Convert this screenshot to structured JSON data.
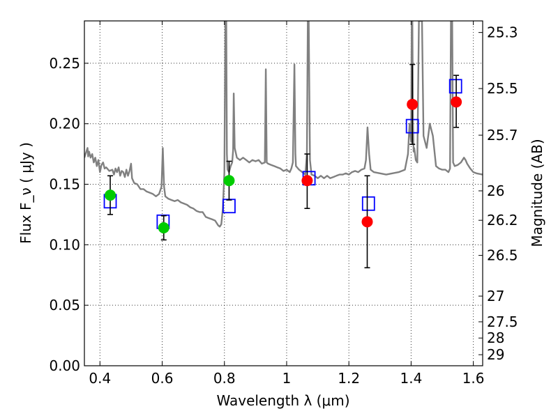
{
  "chart_data": {
    "type": "scatter",
    "title": "",
    "xlabel": "Wavelength  λ (μm)",
    "ylabel": "Flux  F_ν  ( μJy )",
    "ylabel_right": "Magnitude (AB)",
    "xlim": [
      0.35,
      1.63
    ],
    "ylim": [
      0,
      0.285
    ],
    "grid": true,
    "x_ticks": [
      {
        "value": 0.4,
        "label": "0.4"
      },
      {
        "value": 0.6,
        "label": "0.6"
      },
      {
        "value": 0.8,
        "label": "0.8"
      },
      {
        "value": 1.0,
        "label": "1"
      },
      {
        "value": 1.2,
        "label": "1.2"
      },
      {
        "value": 1.4,
        "label": "1.4"
      },
      {
        "value": 1.6,
        "label": "1.6"
      }
    ],
    "y_ticks": [
      {
        "value": 0.0,
        "label": "0.00"
      },
      {
        "value": 0.05,
        "label": "0.05"
      },
      {
        "value": 0.1,
        "label": "0.10"
      },
      {
        "value": 0.15,
        "label": "0.15"
      },
      {
        "value": 0.2,
        "label": "0.20"
      },
      {
        "value": 0.25,
        "label": "0.25"
      }
    ],
    "mag_ticks": [
      {
        "value": 25.3,
        "label": "25.3"
      },
      {
        "value": 25.5,
        "label": "25.5"
      },
      {
        "value": 25.7,
        "label": "25.7"
      },
      {
        "value": 26.0,
        "label": "26"
      },
      {
        "value": 26.2,
        "label": "26.2"
      },
      {
        "value": 26.5,
        "label": "26.5"
      },
      {
        "value": 27.0,
        "label": "27"
      },
      {
        "value": 27.5,
        "label": "27.5"
      },
      {
        "value": 28.0,
        "label": "28"
      },
      {
        "value": 29.0,
        "label": "29"
      }
    ],
    "colors": {
      "spectrum": "#808080",
      "model": "#0000ff",
      "green_points": "#00cc00",
      "red_points": "#ff0000",
      "errorbar": "#000000"
    },
    "series": [
      {
        "style": "line",
        "points": [
          [
            0.35,
            0.172
          ],
          [
            0.355,
            0.176
          ],
          [
            0.36,
            0.18
          ],
          [
            0.362,
            0.173
          ],
          [
            0.365,
            0.177
          ],
          [
            0.37,
            0.172
          ],
          [
            0.375,
            0.175
          ],
          [
            0.38,
            0.168
          ],
          [
            0.385,
            0.172
          ],
          [
            0.39,
            0.165
          ],
          [
            0.395,
            0.17
          ],
          [
            0.4,
            0.16
          ],
          [
            0.405,
            0.166
          ],
          [
            0.41,
            0.168
          ],
          [
            0.415,
            0.163
          ],
          [
            0.42,
            0.164
          ],
          [
            0.43,
            0.161
          ],
          [
            0.44,
            0.162
          ],
          [
            0.445,
            0.158
          ],
          [
            0.45,
            0.163
          ],
          [
            0.455,
            0.16
          ],
          [
            0.46,
            0.164
          ],
          [
            0.465,
            0.157
          ],
          [
            0.47,
            0.161
          ],
          [
            0.475,
            0.16
          ],
          [
            0.48,
            0.156
          ],
          [
            0.485,
            0.162
          ],
          [
            0.49,
            0.157
          ],
          [
            0.495,
            0.161
          ],
          [
            0.5,
            0.167
          ],
          [
            0.503,
            0.155
          ],
          [
            0.51,
            0.151
          ],
          [
            0.52,
            0.15
          ],
          [
            0.53,
            0.146
          ],
          [
            0.54,
            0.146
          ],
          [
            0.55,
            0.144
          ],
          [
            0.56,
            0.143
          ],
          [
            0.57,
            0.142
          ],
          [
            0.58,
            0.14
          ],
          [
            0.59,
            0.142
          ],
          [
            0.598,
            0.148
          ],
          [
            0.602,
            0.18
          ],
          [
            0.606,
            0.148
          ],
          [
            0.61,
            0.14
          ],
          [
            0.62,
            0.138
          ],
          [
            0.63,
            0.137
          ],
          [
            0.64,
            0.136
          ],
          [
            0.65,
            0.137
          ],
          [
            0.66,
            0.135
          ],
          [
            0.67,
            0.134
          ],
          [
            0.68,
            0.133
          ],
          [
            0.69,
            0.131
          ],
          [
            0.7,
            0.13
          ],
          [
            0.71,
            0.128
          ],
          [
            0.72,
            0.127
          ],
          [
            0.73,
            0.127
          ],
          [
            0.74,
            0.123
          ],
          [
            0.75,
            0.122
          ],
          [
            0.76,
            0.121
          ],
          [
            0.77,
            0.12
          ],
          [
            0.78,
            0.116
          ],
          [
            0.785,
            0.115
          ],
          [
            0.79,
            0.117
          ],
          [
            0.795,
            0.13
          ],
          [
            0.8,
            0.16
          ],
          [
            0.803,
            0.285
          ],
          [
            0.806,
            0.285
          ],
          [
            0.808,
            0.175
          ],
          [
            0.81,
            0.162
          ],
          [
            0.815,
            0.16
          ],
          [
            0.82,
            0.165
          ],
          [
            0.825,
            0.168
          ],
          [
            0.828,
            0.178
          ],
          [
            0.83,
            0.225
          ],
          [
            0.833,
            0.18
          ],
          [
            0.84,
            0.172
          ],
          [
            0.85,
            0.17
          ],
          [
            0.86,
            0.172
          ],
          [
            0.87,
            0.17
          ],
          [
            0.88,
            0.168
          ],
          [
            0.89,
            0.17
          ],
          [
            0.9,
            0.169
          ],
          [
            0.91,
            0.17
          ],
          [
            0.92,
            0.167
          ],
          [
            0.93,
            0.168
          ],
          [
            0.933,
            0.245
          ],
          [
            0.936,
            0.168
          ],
          [
            0.94,
            0.167
          ],
          [
            0.95,
            0.166
          ],
          [
            0.96,
            0.165
          ],
          [
            0.97,
            0.164
          ],
          [
            0.98,
            0.163
          ],
          [
            0.99,
            0.161
          ],
          [
            1.0,
            0.162
          ],
          [
            1.01,
            0.16
          ],
          [
            1.015,
            0.163
          ],
          [
            1.02,
            0.168
          ],
          [
            1.025,
            0.249
          ],
          [
            1.028,
            0.175
          ],
          [
            1.03,
            0.165
          ],
          [
            1.04,
            0.162
          ],
          [
            1.05,
            0.16
          ],
          [
            1.06,
            0.158
          ],
          [
            1.065,
            0.175
          ],
          [
            1.068,
            0.285
          ],
          [
            1.071,
            0.285
          ],
          [
            1.075,
            0.17
          ],
          [
            1.08,
            0.158
          ],
          [
            1.09,
            0.157
          ],
          [
            1.1,
            0.155
          ],
          [
            1.11,
            0.157
          ],
          [
            1.12,
            0.155
          ],
          [
            1.13,
            0.157
          ],
          [
            1.14,
            0.155
          ],
          [
            1.15,
            0.156
          ],
          [
            1.16,
            0.157
          ],
          [
            1.17,
            0.158
          ],
          [
            1.18,
            0.158
          ],
          [
            1.19,
            0.159
          ],
          [
            1.2,
            0.158
          ],
          [
            1.21,
            0.16
          ],
          [
            1.22,
            0.161
          ],
          [
            1.23,
            0.16
          ],
          [
            1.24,
            0.162
          ],
          [
            1.25,
            0.163
          ],
          [
            1.255,
            0.17
          ],
          [
            1.26,
            0.197
          ],
          [
            1.265,
            0.175
          ],
          [
            1.27,
            0.162
          ],
          [
            1.28,
            0.16
          ],
          [
            1.3,
            0.159
          ],
          [
            1.32,
            0.158
          ],
          [
            1.34,
            0.159
          ],
          [
            1.36,
            0.16
          ],
          [
            1.38,
            0.162
          ],
          [
            1.39,
            0.175
          ],
          [
            1.395,
            0.2
          ],
          [
            1.4,
            0.185
          ],
          [
            1.402,
            0.285
          ],
          [
            1.404,
            0.285
          ],
          [
            1.406,
            0.2
          ],
          [
            1.408,
            0.177
          ],
          [
            1.41,
            0.18
          ],
          [
            1.415,
            0.17
          ],
          [
            1.42,
            0.168
          ],
          [
            1.425,
            0.285
          ],
          [
            1.435,
            0.285
          ],
          [
            1.44,
            0.19
          ],
          [
            1.45,
            0.18
          ],
          [
            1.46,
            0.2
          ],
          [
            1.47,
            0.19
          ],
          [
            1.48,
            0.165
          ],
          [
            1.49,
            0.163
          ],
          [
            1.5,
            0.162
          ],
          [
            1.51,
            0.162
          ],
          [
            1.52,
            0.16
          ],
          [
            1.525,
            0.163
          ],
          [
            1.528,
            0.285
          ],
          [
            1.532,
            0.285
          ],
          [
            1.535,
            0.168
          ],
          [
            1.54,
            0.165
          ],
          [
            1.55,
            0.166
          ],
          [
            1.56,
            0.168
          ],
          [
            1.57,
            0.172
          ],
          [
            1.575,
            0.17
          ],
          [
            1.58,
            0.167
          ],
          [
            1.59,
            0.163
          ],
          [
            1.6,
            0.16
          ],
          [
            1.61,
            0.159
          ],
          [
            1.63,
            0.158
          ]
        ]
      },
      {
        "style": "open-square",
        "points": [
          [
            0.433,
            0.136
          ],
          [
            0.603,
            0.119
          ],
          [
            0.815,
            0.132
          ],
          [
            1.072,
            0.155
          ],
          [
            1.263,
            0.134
          ],
          [
            1.404,
            0.198
          ],
          [
            1.543,
            0.231
          ]
        ]
      },
      {
        "style": "filled-circle",
        "color_key": "green_points",
        "points": [
          {
            "x": 0.433,
            "y": 0.141,
            "yerr_low": 0.125,
            "yerr_high": 0.157
          },
          {
            "x": 0.605,
            "y": 0.114,
            "yerr_low": 0.104,
            "yerr_high": 0.124
          },
          {
            "x": 0.815,
            "y": 0.153,
            "yerr_low": 0.137,
            "yerr_high": 0.169
          }
        ]
      },
      {
        "style": "filled-circle",
        "color_key": "red_points",
        "points": [
          {
            "x": 1.066,
            "y": 0.153,
            "yerr_low": 0.13,
            "yerr_high": 0.175
          },
          {
            "x": 1.259,
            "y": 0.119,
            "yerr_low": 0.081,
            "yerr_high": 0.157
          },
          {
            "x": 1.404,
            "y": 0.216,
            "yerr_low": 0.183,
            "yerr_high": 0.249
          },
          {
            "x": 1.545,
            "y": 0.218,
            "yerr_low": 0.197,
            "yerr_high": 0.24
          }
        ]
      }
    ]
  }
}
